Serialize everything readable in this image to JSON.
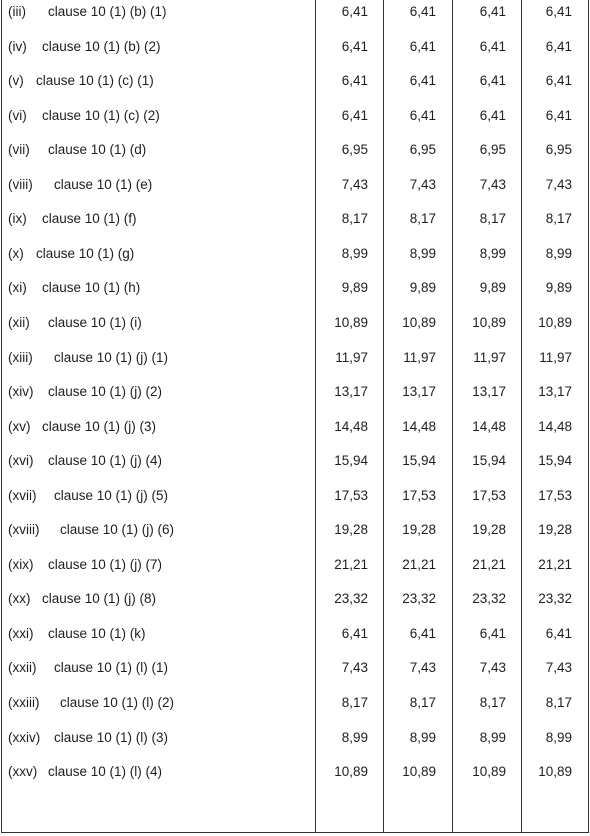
{
  "table": {
    "rows": [
      [
        "(iii)",
        "clause 10 (1) (b) (1)",
        "6,41",
        "6,41",
        "6,41",
        "6,41"
      ],
      [
        "(iv)",
        "clause 10 (1) (b) (2)",
        "6,41",
        "6,41",
        "6,41",
        "6,41"
      ],
      [
        "(v)",
        "clause 10 (1) (c) (1)",
        "6,41",
        "6,41",
        "6,41",
        "6,41"
      ],
      [
        "(vi)",
        "clause 10 (1) (c) (2)",
        "6,41",
        "6,41",
        "6,41",
        "6,41"
      ],
      [
        "(vii)",
        "clause 10 (1) (d)",
        "6,95",
        "6,95",
        "6,95",
        "6,95"
      ],
      [
        "(viii)",
        "clause 10 (1) (e)",
        "7,43",
        "7,43",
        "7,43",
        "7,43"
      ],
      [
        "(ix)",
        "clause 10 (1) (f)",
        "8,17",
        "8,17",
        "8,17",
        "8,17"
      ],
      [
        "(x)",
        "clause 10 (1) (g)",
        "8,99",
        "8,99",
        "8,99",
        "8,99"
      ],
      [
        "(xi)",
        "clause 10 (1) (h)",
        "9,89",
        "9,89",
        "9,89",
        "9,89"
      ],
      [
        "(xii)",
        "clause 10 (1) (i)",
        "10,89",
        "10,89",
        "10,89",
        "10,89"
      ],
      [
        "(xiii)",
        "clause 10 (1) (j) (1)",
        "11,97",
        "11,97",
        "11,97",
        "11,97"
      ],
      [
        "(xiv)",
        "clause 10 (1) (j) (2)",
        "13,17",
        "13,17",
        "13,17",
        "13,17"
      ],
      [
        "(xv)",
        "clause 10 (1) (j) (3)",
        "14,48",
        "14,48",
        "14,48",
        "14,48"
      ],
      [
        "(xvi)",
        "clause 10 (1) (j) (4)",
        "15,94",
        "15,94",
        "15,94",
        "15,94"
      ],
      [
        "(xvii)",
        "clause 10 (1) (j) (5)",
        "17,53",
        "17,53",
        "17,53",
        "17,53"
      ],
      [
        "(xviii)",
        "clause 10 (1) (j) (6)",
        "19,28",
        "19,28",
        "19,28",
        "19,28"
      ],
      [
        "(xix)",
        "clause 10 (1) (j) (7)",
        "21,21",
        "21,21",
        "21,21",
        "21,21"
      ],
      [
        "(xx)",
        "clause 10 (1) (j) (8)",
        "23,32",
        "23,32",
        "23,32",
        "23,32"
      ],
      [
        "(xxi)",
        "clause 10 (1) (k)",
        "6,41",
        "6,41",
        "6,41",
        "6,41"
      ],
      [
        "(xxii)",
        "clause 10 (1) (l) (1)",
        "7,43",
        "7,43",
        "7,43",
        "7,43"
      ],
      [
        "(xxiii)",
        "clause 10 (1) (l) (2)",
        "8,17",
        "8,17",
        "8,17",
        "8,17"
      ],
      [
        "(xxiv)",
        "clause 10 (1) (l) (3)",
        "8,99",
        "8,99",
        "8,99",
        "8,99"
      ],
      [
        "(xxv)",
        "clause 10 (1) (l) (4)",
        "10,89",
        "10,89",
        "10,89",
        "10,89"
      ]
    ]
  }
}
